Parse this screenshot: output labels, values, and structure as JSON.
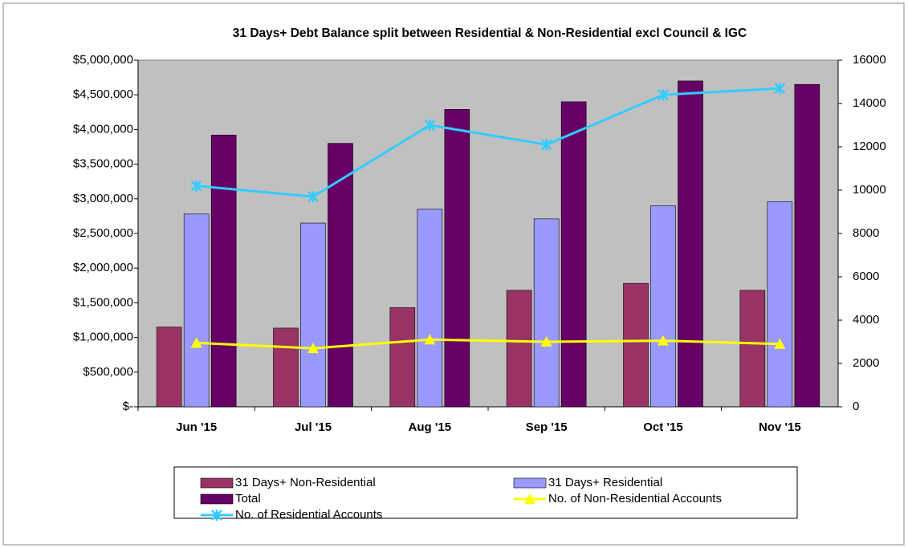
{
  "chart_data": {
    "type": "bar-line",
    "title": "31 Days+ Debt Balance split between Residential & Non-Residential excl Council & IGC",
    "categories": [
      "Jun '15",
      "Jul '15",
      "Aug '15",
      "Sep '15",
      "Oct '15",
      "Nov '15"
    ],
    "series": [
      {
        "name": "31 Days+ Non-Residential",
        "type": "bar",
        "color": "#993366",
        "values": [
          1150000,
          1135000,
          1430000,
          1680000,
          1780000,
          1680000
        ]
      },
      {
        "name": "31 Days+ Residential",
        "type": "bar",
        "color": "#9999ff",
        "values": [
          2780000,
          2650000,
          2850000,
          2710000,
          2900000,
          2960000
        ]
      },
      {
        "name": "Total",
        "type": "bar",
        "color": "#660066",
        "values": [
          3920000,
          3800000,
          4290000,
          4400000,
          4700000,
          4650000
        ]
      },
      {
        "name": "No. of Non-Residential Accounts",
        "type": "line",
        "axis": "y2",
        "marker": "triangle",
        "color": "#ffff00",
        "values": [
          2950,
          2700,
          3100,
          3000,
          3050,
          2900
        ]
      },
      {
        "name": "No. of Residential Accounts",
        "type": "line",
        "axis": "y2",
        "marker": "x",
        "color": "#33ccff",
        "values": [
          10200,
          9700,
          13000,
          12100,
          14400,
          14700
        ]
      }
    ],
    "ylim": [
      0,
      5000000
    ],
    "yticks": [
      {
        "value": 0,
        "label": "$-"
      },
      {
        "value": 500000,
        "label": "$500,000"
      },
      {
        "value": 1000000,
        "label": "$1,000,000"
      },
      {
        "value": 1500000,
        "label": "$1,500,000"
      },
      {
        "value": 2000000,
        "label": "$2,000,000"
      },
      {
        "value": 2500000,
        "label": "$2,500,000"
      },
      {
        "value": 3000000,
        "label": "$3,000,000"
      },
      {
        "value": 3500000,
        "label": "$3,500,000"
      },
      {
        "value": 4000000,
        "label": "$4,000,000"
      },
      {
        "value": 4500000,
        "label": "$4,500,000"
      },
      {
        "value": 5000000,
        "label": "$5,000,000"
      }
    ],
    "y2lim": [
      0,
      16000
    ],
    "y2ticks": [
      0,
      2000,
      4000,
      6000,
      8000,
      10000,
      12000,
      14000,
      16000
    ],
    "plot_background": "#c0c0c0",
    "legend": "bottom"
  }
}
